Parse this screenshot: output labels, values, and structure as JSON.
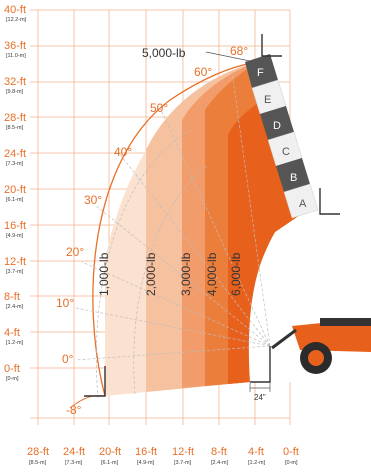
{
  "chart": {
    "top_load_label": "5,000-lb",
    "top_angle_label": "68°",
    "angle_labels": [
      "60°",
      "50°",
      "40°",
      "30°",
      "20°",
      "10°",
      "0°",
      "-8°"
    ],
    "zone_letters": [
      "F",
      "E",
      "D",
      "C",
      "B",
      "A"
    ],
    "load_zones": [
      "1,000-lb",
      "2,000-lb",
      "3,000-lb",
      "4,000-lb",
      "6,000-lb"
    ],
    "offset_label": "24\"",
    "y_axis": [
      {
        "ft": "40-ft",
        "m": "[12.2-m]"
      },
      {
        "ft": "36-ft",
        "m": "[11.0-m]"
      },
      {
        "ft": "32-ft",
        "m": "[9.8-m]"
      },
      {
        "ft": "28-ft",
        "m": "[8.5-m]"
      },
      {
        "ft": "24-ft",
        "m": "[7.3-m]"
      },
      {
        "ft": "20-ft",
        "m": "[6.1-m]"
      },
      {
        "ft": "16-ft",
        "m": "[4.9-m]"
      },
      {
        "ft": "12-ft",
        "m": "[3.7-m]"
      },
      {
        "ft": "8-ft",
        "m": "[2.4-m]"
      },
      {
        "ft": "4-ft",
        "m": "[1.2-m]"
      },
      {
        "ft": "0-ft",
        "m": "[0-m]"
      }
    ],
    "x_axis": [
      {
        "ft": "28-ft",
        "m": "[8.5-m]"
      },
      {
        "ft": "24-ft",
        "m": "[7.3-m]"
      },
      {
        "ft": "20-ft",
        "m": "[6.1-m]"
      },
      {
        "ft": "16-ft",
        "m": "[4.9-m]"
      },
      {
        "ft": "12-ft",
        "m": "[3.7-m]"
      },
      {
        "ft": "8-ft",
        "m": "[2.4-m]"
      },
      {
        "ft": "4-ft",
        "m": "[1.2-m]"
      },
      {
        "ft": "0-ft",
        "m": "[0-m]"
      }
    ],
    "colors": {
      "accent": "#e8702a",
      "zone1": "#fbe2d0",
      "zone2": "#f6c19f",
      "zone3": "#f19c6a",
      "zone4": "#ec7e3c",
      "zone5": "#e8611c",
      "boom": "#4a4a4a"
    }
  }
}
